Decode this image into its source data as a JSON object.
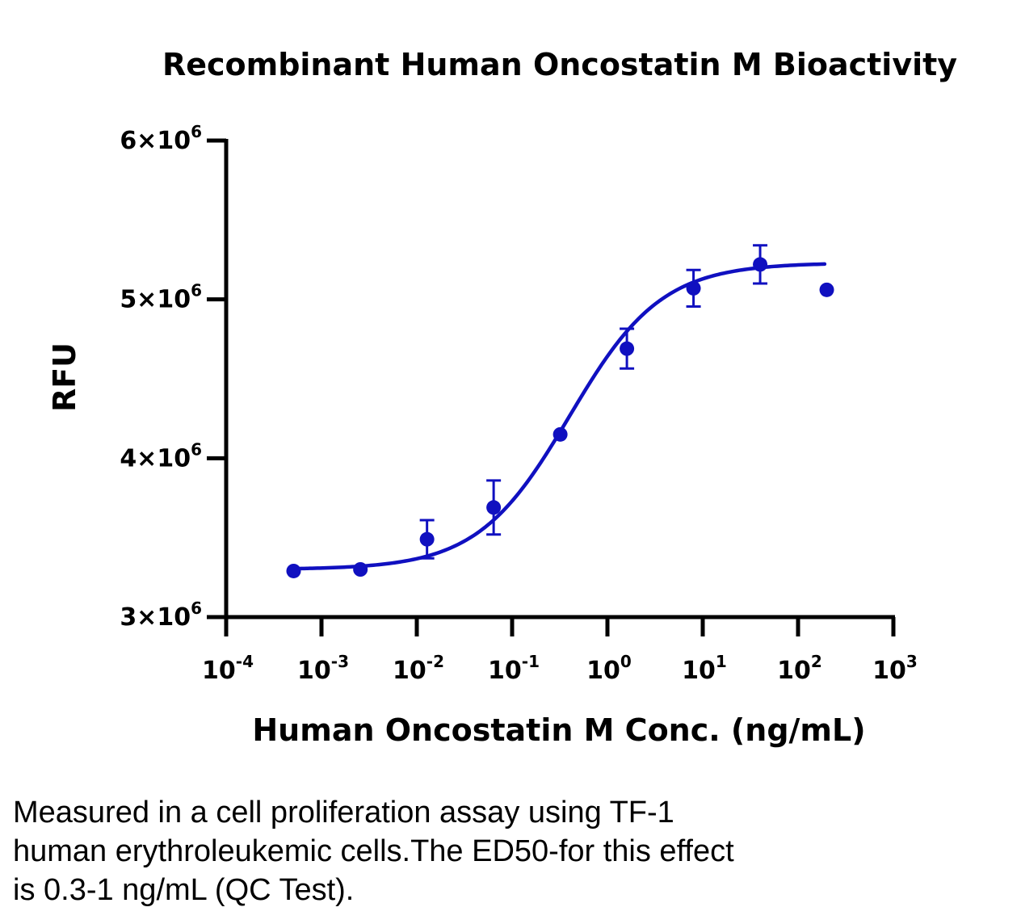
{
  "chart_data": {
    "type": "scatter",
    "title": "Recombinant Human Oncostatin M Bioactivity",
    "xlabel": "Human Oncostatin M Conc. (ng/mL)",
    "ylabel": "RFU",
    "x_scale": "log",
    "xlim": [
      0.0001,
      1000
    ],
    "ylim": [
      3000000,
      6000000
    ],
    "x_ticks": [
      {
        "base": "10",
        "exp": "-4"
      },
      {
        "base": "10",
        "exp": "-3"
      },
      {
        "base": "10",
        "exp": "-2"
      },
      {
        "base": "10",
        "exp": "-1"
      },
      {
        "base": "10",
        "exp": "0"
      },
      {
        "base": "10",
        "exp": "1"
      },
      {
        "base": "10",
        "exp": "2"
      },
      {
        "base": "10",
        "exp": "3"
      }
    ],
    "y_ticks": [
      {
        "value": 3000000,
        "mantissa": "3",
        "times": "×",
        "base": "10",
        "exp": "6"
      },
      {
        "value": 4000000,
        "mantissa": "4",
        "times": "×",
        "base": "10",
        "exp": "6"
      },
      {
        "value": 5000000,
        "mantissa": "5",
        "times": "×",
        "base": "10",
        "exp": "6"
      },
      {
        "value": 6000000,
        "mantissa": "6",
        "times": "×",
        "base": "10",
        "exp": "6"
      }
    ],
    "series": [
      {
        "color": "#1010c0",
        "points": [
          {
            "x": 0.00051,
            "y": 3290000,
            "err": 0
          },
          {
            "x": 0.00256,
            "y": 3300000,
            "err": 0
          },
          {
            "x": 0.0128,
            "y": 3490000,
            "err": 120000
          },
          {
            "x": 0.064,
            "y": 3690000,
            "err": 170000
          },
          {
            "x": 0.32,
            "y": 4150000,
            "err": 0
          },
          {
            "x": 1.6,
            "y": 4690000,
            "err": 125000
          },
          {
            "x": 8.0,
            "y": 5070000,
            "err": 115000
          },
          {
            "x": 40.0,
            "y": 5220000,
            "err": 120000
          },
          {
            "x": 200.0,
            "y": 5060000,
            "err": 0
          }
        ],
        "fit": {
          "model": "4PL",
          "bottom": 3300000,
          "top": 5230000,
          "ec50": 0.4,
          "hill": 0.9,
          "x_from": 0.00051,
          "x_to": 190
        }
      }
    ],
    "grid": false,
    "legend": "none"
  },
  "caption": {
    "lines": [
      "Measured in a cell proliferation assay using TF-1",
      "human erythroleukemic cells.The ED50-for this effect",
      "is 0.3-1 ng/mL (QC Test)."
    ]
  }
}
